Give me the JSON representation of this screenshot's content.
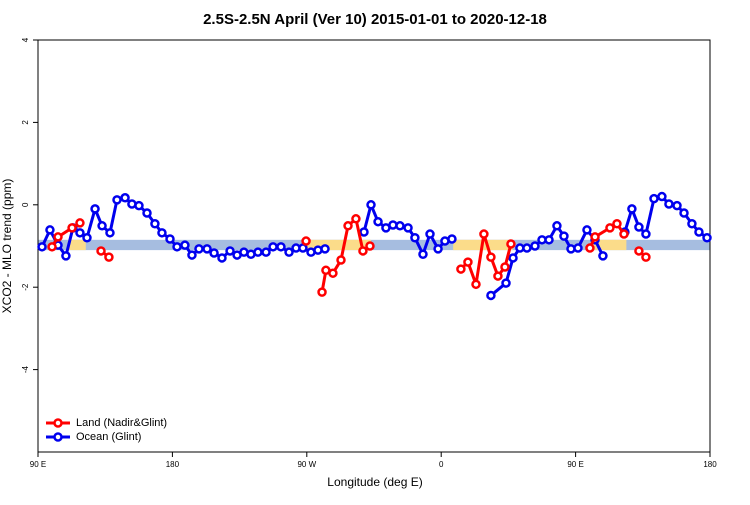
{
  "chart_data": {
    "type": "line",
    "title": "2.5S-2.5N April (Ver 10)   2015-01-01 to 2020-12-18",
    "x_label": "Longitude (deg E)",
    "y_label": "XCO2 - MLO trend (ppm)",
    "xlim": [
      90,
      540
    ],
    "ylim": [
      -6,
      4
    ],
    "xticks": [
      {
        "value": 90,
        "label": "90 E"
      },
      180,
      {
        "value": 270,
        "label": "90 W"
      },
      {
        "value": 360,
        "label": "0"
      },
      {
        "value": 450,
        "label": "90 E"
      },
      {
        "value": 540,
        "label": "180"
      }
    ],
    "yticks": [
      4,
      2,
      0,
      -2,
      -4
    ],
    "legend": "bottom-left",
    "band": {
      "ylim": [
        -1.1,
        -0.85
      ],
      "segments": [
        {
          "x": [
            90,
            540
          ],
          "color": "#a6bde0"
        },
        {
          "x": [
            110,
            122
          ],
          "color": "#fbdc8a"
        },
        {
          "x": [
            270,
            313
          ],
          "color": "#fbdc8a"
        },
        {
          "x": [
            368,
            408
          ],
          "color": "#fbdc8a"
        },
        {
          "x": [
            460,
            484
          ],
          "color": "#fbdc8a"
        }
      ]
    },
    "series": [
      {
        "name": "Land (Nadir&Glint)",
        "color": "#ff0000",
        "x": [
          99.4,
          103.4,
          112.8,
          118.1,
          null,
          132.2,
          137.5,
          null,
          269.5,
          null,
          280.2,
          282.8,
          287.5,
          292.9,
          297.6,
          302.9,
          307.6,
          312.3,
          null,
          373.2,
          377.9,
          383.3,
          388.6,
          393.3,
          398.0,
          402.7,
          406.7,
          null,
          459.6,
          463.0,
          473.0,
          477.7,
          482.4,
          null,
          492.4,
          497.1
        ],
        "values": [
          -1.02,
          -0.78,
          -0.56,
          -0.44,
          null,
          -1.12,
          -1.27,
          null,
          -0.88,
          null,
          -2.12,
          -1.59,
          -1.66,
          -1.34,
          -0.51,
          -0.34,
          -1.12,
          -1.0,
          null,
          -1.56,
          -1.39,
          -1.93,
          -0.71,
          -1.27,
          -1.73,
          -1.51,
          -0.95,
          null,
          -1.05,
          -0.78,
          -0.56,
          -0.46,
          -0.71,
          null,
          -1.12,
          -1.27
        ]
      },
      {
        "name": "Ocean (Glint)",
        "color": "#0000ee",
        "x": [
          92.7,
          98.0,
          103.4,
          108.7,
          113.4,
          118.1,
          122.8,
          128.2,
          132.9,
          138.2,
          142.9,
          148.3,
          152.9,
          157.6,
          163.0,
          168.3,
          173.0,
          178.4,
          183.1,
          188.4,
          193.1,
          197.8,
          203.2,
          207.9,
          213.2,
          218.6,
          223.3,
          227.9,
          232.6,
          237.3,
          242.7,
          247.4,
          252.7,
          258.1,
          262.8,
          267.4,
          272.8,
          277.5,
          282.2,
          null,
          308.3,
          313.0,
          317.7,
          323.0,
          327.7,
          332.4,
          337.8,
          342.4,
          347.8,
          352.5,
          357.9,
          362.5,
          367.2,
          null,
          393.3,
          403.4,
          408.1,
          412.7,
          417.4,
          422.8,
          427.5,
          432.2,
          437.5,
          442.2,
          446.9,
          451.6,
          457.6,
          463.0,
          468.3,
          null,
          483.0,
          487.7,
          492.4,
          497.1,
          502.5,
          507.8,
          512.5,
          517.9,
          522.6,
          527.9,
          532.6,
          538.0
        ],
        "values": [
          -1.02,
          -0.61,
          -0.98,
          -1.24,
          -0.56,
          -0.68,
          -0.8,
          -0.1,
          -0.51,
          -0.68,
          0.12,
          0.17,
          0.02,
          -0.02,
          -0.2,
          -0.46,
          -0.68,
          -0.83,
          -1.02,
          -0.98,
          -1.22,
          -1.07,
          -1.07,
          -1.17,
          -1.29,
          -1.12,
          -1.22,
          -1.15,
          -1.2,
          -1.15,
          -1.15,
          -1.02,
          -1.02,
          -1.15,
          -1.05,
          -1.05,
          -1.15,
          -1.1,
          -1.07,
          null,
          -0.66,
          0.0,
          -0.41,
          -0.56,
          -0.49,
          -0.51,
          -0.56,
          -0.8,
          -1.2,
          -0.71,
          -1.07,
          -0.88,
          -0.83,
          null,
          -2.2,
          -1.9,
          -1.29,
          -1.05,
          -1.05,
          -1.0,
          -0.85,
          -0.85,
          -0.51,
          -0.76,
          -1.07,
          -1.05,
          -0.61,
          -0.85,
          -1.24,
          null,
          -0.66,
          -0.1,
          -0.54,
          -0.71,
          0.15,
          0.2,
          0.02,
          -0.02,
          -0.2,
          -0.46,
          -0.66,
          -0.8
        ]
      }
    ]
  }
}
